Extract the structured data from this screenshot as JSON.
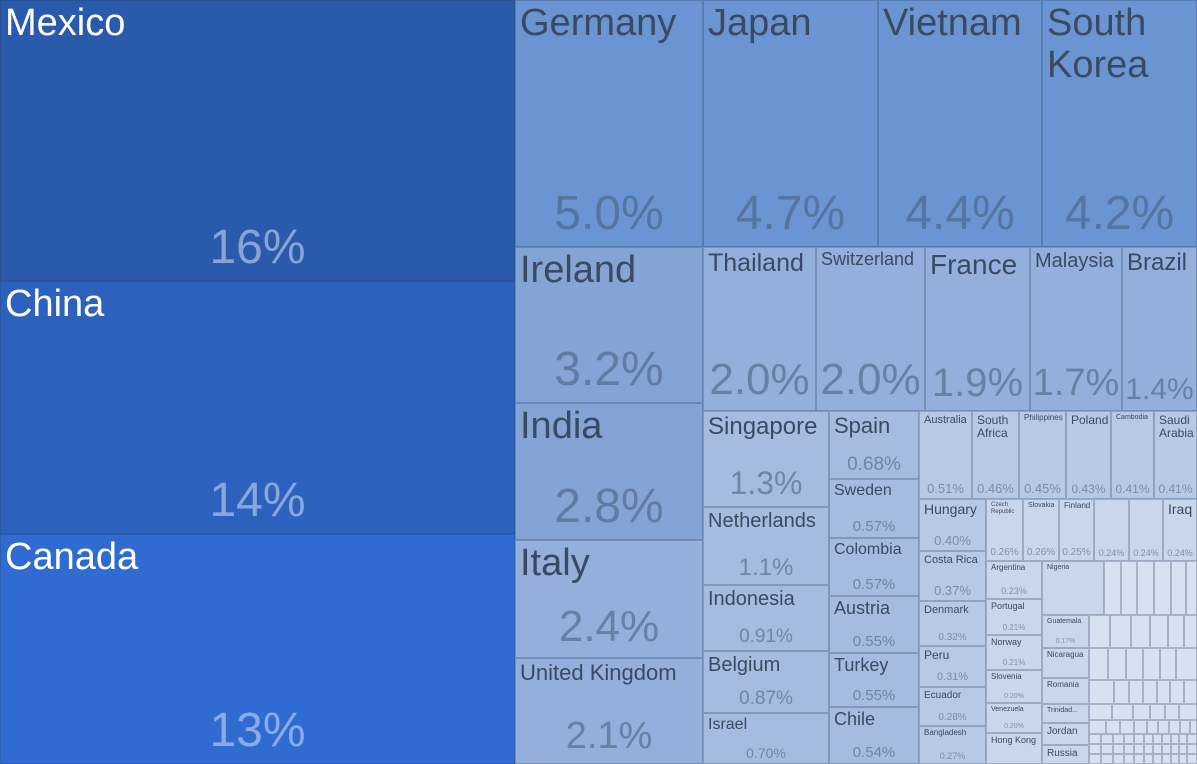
{
  "chart_data": {
    "type": "treemap",
    "colors": {
      "tier1": "#2a5aab",
      "tier2": "#2d61be",
      "tier3": "#2f6bd0",
      "tier4": "#6b95d2",
      "tier5": "#84a4d6",
      "tier6": "#94afdb",
      "tier7": "#a5bce0",
      "tier8": "#b8c9e6",
      "tier9": "#c9d6eb",
      "tier10": "#d8e1ef",
      "label_dark": "#3b4a63",
      "label_light": "#ffffff"
    },
    "cells": [
      {
        "name": "Mexico",
        "share": "16%",
        "value": 16
      },
      {
        "name": "China",
        "share": "14%",
        "value": 14
      },
      {
        "name": "Canada",
        "share": "13%",
        "value": 13
      },
      {
        "name": "Germany",
        "share": "5.0%",
        "value": 5.0
      },
      {
        "name": "Japan",
        "share": "4.7%",
        "value": 4.7
      },
      {
        "name": "Vietnam",
        "share": "4.4%",
        "value": 4.4
      },
      {
        "name": "South Korea",
        "share": "4.2%",
        "value": 4.2
      },
      {
        "name": "Ireland",
        "share": "3.2%",
        "value": 3.2
      },
      {
        "name": "India",
        "share": "2.8%",
        "value": 2.8
      },
      {
        "name": "Italy",
        "share": "2.4%",
        "value": 2.4
      },
      {
        "name": "United Kingdom",
        "share": "2.1%",
        "value": 2.1
      },
      {
        "name": "Thailand",
        "share": "2.0%",
        "value": 2.0
      },
      {
        "name": "Switzerland",
        "share": "2.0%",
        "value": 2.0
      },
      {
        "name": "France",
        "share": "1.9%",
        "value": 1.9
      },
      {
        "name": "Malaysia",
        "share": "1.7%",
        "value": 1.7
      },
      {
        "name": "Brazil",
        "share": "1.4%",
        "value": 1.4
      },
      {
        "name": "Singapore",
        "share": "1.3%",
        "value": 1.3
      },
      {
        "name": "Netherlands",
        "share": "1.1%",
        "value": 1.1
      },
      {
        "name": "Indonesia",
        "share": "0.91%",
        "value": 0.91
      },
      {
        "name": "Belgium",
        "share": "0.87%",
        "value": 0.87
      },
      {
        "name": "Israel",
        "share": "0.70%",
        "value": 0.7
      },
      {
        "name": "Spain",
        "share": "0.68%",
        "value": 0.68
      },
      {
        "name": "Sweden",
        "share": "0.57%",
        "value": 0.57
      },
      {
        "name": "Colombia",
        "share": "0.57%",
        "value": 0.57
      },
      {
        "name": "Austria",
        "share": "0.55%",
        "value": 0.55
      },
      {
        "name": "Turkey",
        "share": "0.55%",
        "value": 0.55
      },
      {
        "name": "Chile",
        "share": "0.54%",
        "value": 0.54
      },
      {
        "name": "Australia",
        "share": "0.51%",
        "value": 0.51
      },
      {
        "name": "South Africa",
        "share": "0.46%",
        "value": 0.46
      },
      {
        "name": "Philippines",
        "share": "0.45%",
        "value": 0.45
      },
      {
        "name": "Poland",
        "share": "0.43%",
        "value": 0.43
      },
      {
        "name": "Cambodia",
        "share": "0.41%",
        "value": 0.41
      },
      {
        "name": "Saudi Arabia",
        "share": "0.41%",
        "value": 0.41
      },
      {
        "name": "Hungary",
        "share": "0.40%",
        "value": 0.4
      },
      {
        "name": "Czech Republic",
        "share": "0.26%",
        "value": 0.26
      },
      {
        "name": "Slovakia",
        "share": "0.26%",
        "value": 0.26
      },
      {
        "name": "Finland",
        "share": "0.25%",
        "value": 0.25
      },
      {
        "name": "",
        "share": "0.24%",
        "value": 0.24
      },
      {
        "name": "",
        "share": "0.24%",
        "value": 0.24
      },
      {
        "name": "Iraq",
        "share": "0.24%",
        "value": 0.24
      },
      {
        "name": "Costa Rica",
        "share": "0.37%",
        "value": 0.37
      },
      {
        "name": "Argentina",
        "share": "0.23%",
        "value": 0.23
      },
      {
        "name": "Nigeria",
        "share": "",
        "value": null
      },
      {
        "name": "Denmark",
        "share": "0.32%",
        "value": 0.32
      },
      {
        "name": "Portugal",
        "share": "0.21%",
        "value": 0.21
      },
      {
        "name": "Guatemala",
        "share": "0.17%",
        "value": 0.17
      },
      {
        "name": "Norway",
        "share": "0.21%",
        "value": 0.21
      },
      {
        "name": "Peru",
        "share": "0.31%",
        "value": 0.31
      },
      {
        "name": "Nicaragua",
        "share": "",
        "value": null
      },
      {
        "name": "Slovenia",
        "share": "0.20%",
        "value": 0.2
      },
      {
        "name": "Romania",
        "share": "",
        "value": null
      },
      {
        "name": "Ecuador",
        "share": "0.28%",
        "value": 0.28
      },
      {
        "name": "Venezuela",
        "share": "0.20%",
        "value": 0.2
      },
      {
        "name": "Trinidad...",
        "share": "",
        "value": null
      },
      {
        "name": "Bangladesh",
        "share": "0.27%",
        "value": 0.27
      },
      {
        "name": "Hong Kong",
        "share": "",
        "value": null
      },
      {
        "name": "Jordan",
        "share": "",
        "value": null
      },
      {
        "name": "Russia",
        "share": "",
        "value": null
      }
    ]
  }
}
